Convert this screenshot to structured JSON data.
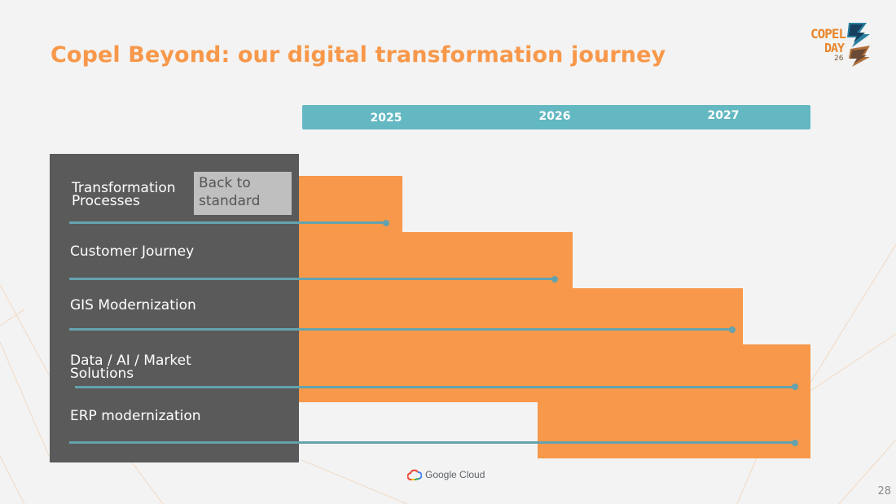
{
  "slide": {
    "title": "Copel Beyond: our digital transformation journey",
    "page_number": "28"
  },
  "logo": {
    "line1": "COPEL",
    "line2": "DAY",
    "line3": "26"
  },
  "timeline": {
    "years": [
      "2025",
      "2026",
      "2027"
    ],
    "rows": [
      {
        "label_line1": "Transformation",
        "label_line2": "Processes"
      },
      {
        "label_line1": "Customer Journey"
      },
      {
        "label_line1": "GIS Modernization"
      },
      {
        "label_line1": "Data / AI /  Market",
        "label_line2": "Solutions"
      },
      {
        "label_line1": "ERP modernization"
      }
    ],
    "badge": {
      "line1": "Back to",
      "line2": "standard"
    }
  },
  "footer": {
    "google_cloud": "Google Cloud"
  },
  "colors": {
    "accent_orange": "#f7984a",
    "teal": "#63b8c1",
    "panel_gray": "#5a5a5a"
  }
}
